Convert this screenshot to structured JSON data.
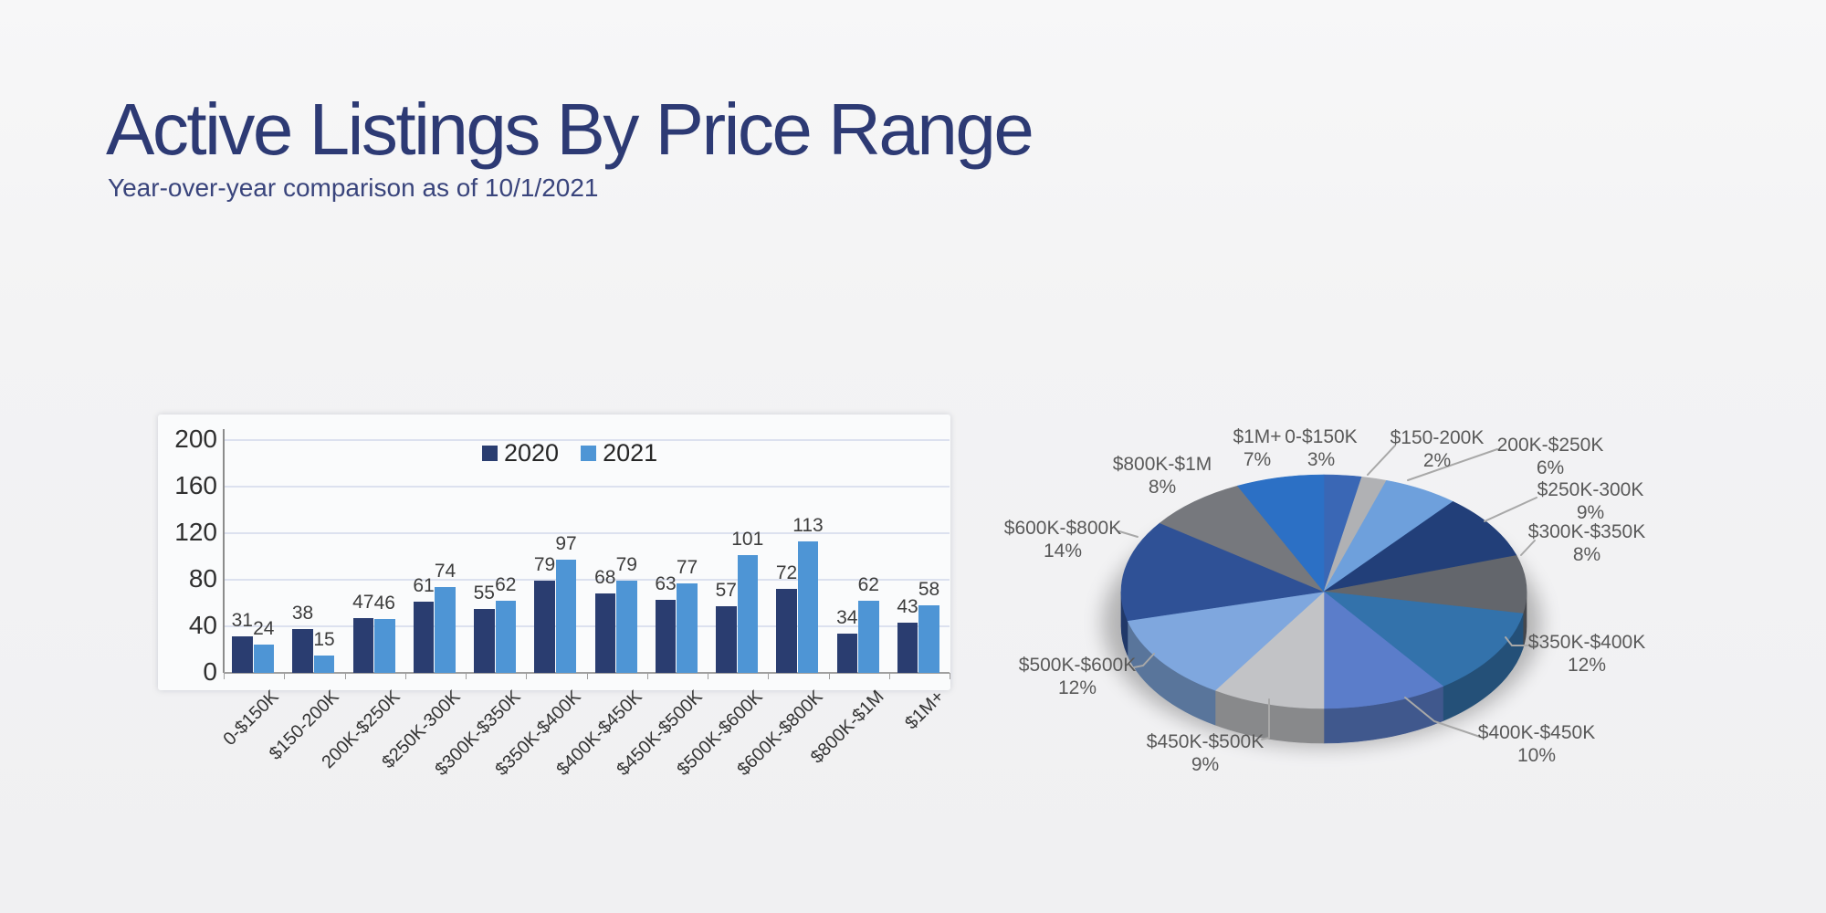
{
  "page": {
    "title": "Active Listings By Price Range",
    "subtitle": "Year-over-year comparison as of 10/1/2021"
  },
  "chart_data": [
    {
      "type": "bar",
      "title": "",
      "categories": [
        "0-$150K",
        "$150-200K",
        "200K-$250K",
        "$250K-300K",
        "$300K-$350K",
        "$350K-$400K",
        "$400K-$450K",
        "$450K-$500K",
        "$500K-$600K",
        "$600K-$800K",
        "$800K-$1M",
        "$1M+"
      ],
      "series": [
        {
          "name": "2020",
          "color": "#2A3D70",
          "values": [
            31,
            38,
            47,
            61,
            55,
            79,
            68,
            63,
            57,
            72,
            34,
            43
          ]
        },
        {
          "name": "2021",
          "color": "#4E95D5",
          "values": [
            24,
            15,
            46,
            74,
            62,
            97,
            79,
            77,
            101,
            113,
            62,
            58
          ]
        }
      ],
      "xlabel": "",
      "ylabel": "",
      "ylim": [
        0,
        200
      ],
      "yticks": [
        0,
        40,
        80,
        120,
        160,
        200
      ],
      "grid": true,
      "legend_position": "top-center",
      "gridline_color": "#DCE1EF",
      "axis_color": "#8C8C8C",
      "value_label_color": "#3D3D3D"
    },
    {
      "type": "pie",
      "style": "3d",
      "labels": [
        "0-$150K",
        "$150-200K",
        "200K-$250K",
        "$250K-300K",
        "$300K-$350K",
        "$350K-$400K",
        "$400K-$450K",
        "$450K-$500K",
        "$500K-$600K",
        "$600K-$800K",
        "$800K-$1M",
        "$1M+"
      ],
      "values": [
        3,
        2,
        6,
        9,
        8,
        12,
        10,
        9,
        12,
        14,
        8,
        7
      ],
      "unit": "%",
      "colors": [
        "#3A67B5",
        "#B0B1B4",
        "#6EA0DC",
        "#223F79",
        "#63666C",
        "#3372AB",
        "#5B7DCA",
        "#C2C3C6",
        "#7FA7DE",
        "#2F5196",
        "#76787D",
        "#2C70C5"
      ],
      "start_angle_deg": 0,
      "direction": "clockwise",
      "label_color": "#595959",
      "leader_color": "#A8A8A8"
    }
  ]
}
